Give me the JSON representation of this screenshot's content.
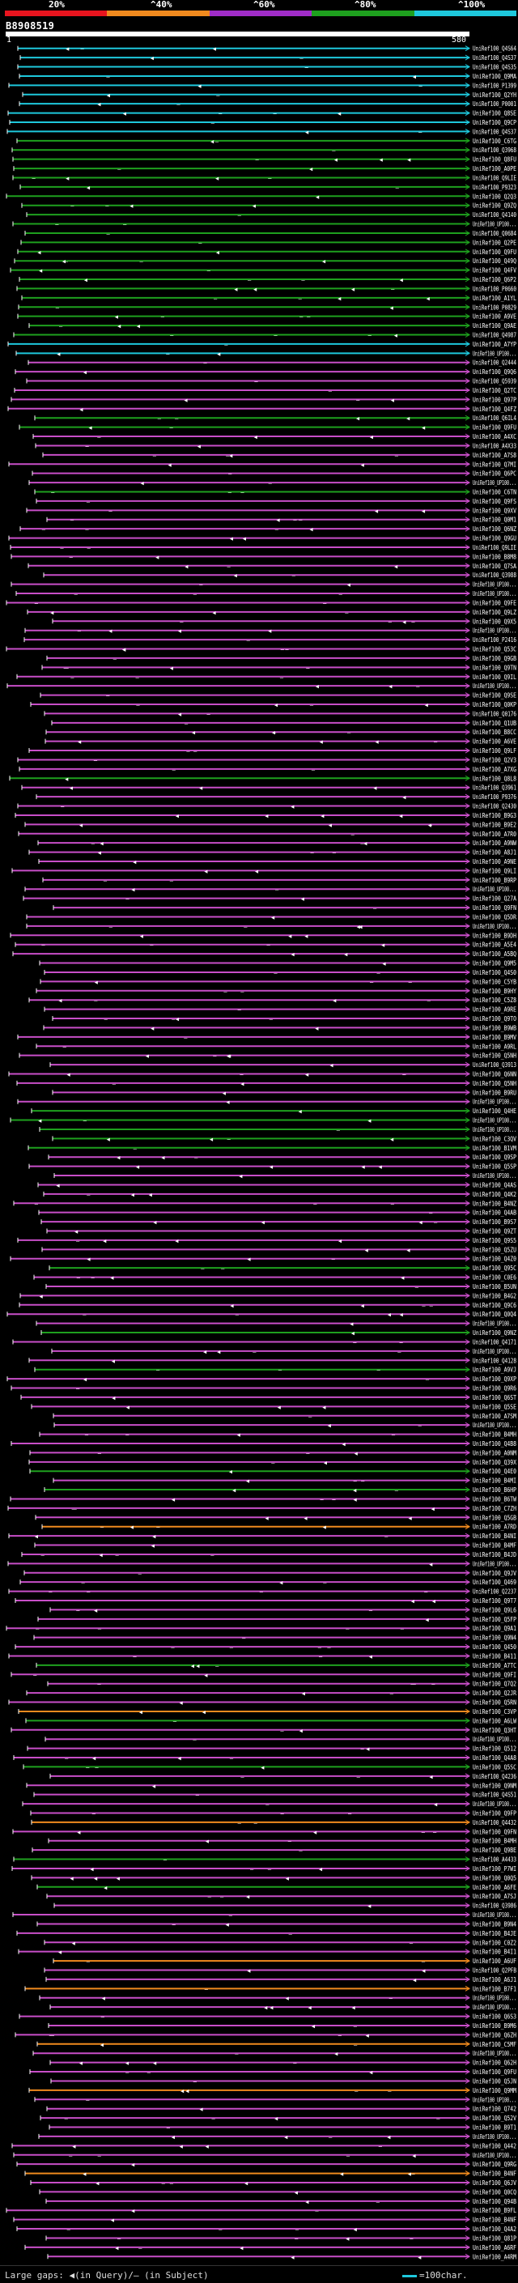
{
  "scale": {
    "labels": [
      "20%",
      "^40%",
      "^60%",
      "^80%",
      "^100%"
    ],
    "colors": [
      "#e8141e",
      "#f08a1e",
      "#a02cc8",
      "#1ea01e",
      "#1ec8dc"
    ]
  },
  "query": {
    "id": "B8908519",
    "start": "1",
    "end": "580"
  },
  "colors": {
    "cyan": "#1ec8dc",
    "green": "#1ea01e",
    "magenta": "#c84ec8",
    "orange": "#f08a1e",
    "label": "#ffffff",
    "marker": "#ffffff"
  },
  "hits": [
    {
      "label": "UniRef100_Q4S64",
      "color": "cyan"
    },
    {
      "label": "UniRef100_Q4S37",
      "color": "cyan"
    },
    {
      "label": "UniRef100_Q4S35",
      "color": "cyan"
    },
    {
      "label": "UniRef100_Q9MA",
      "color": "cyan"
    },
    {
      "label": "UniRef100_P1399",
      "color": "cyan"
    },
    {
      "label": "UniRef100_Q2YH",
      "color": "cyan"
    },
    {
      "label": "UniRef100_P0001",
      "color": "cyan"
    },
    {
      "label": "UniRef100_Q8SE",
      "color": "cyan"
    },
    {
      "label": "UniRef100_Q9CP",
      "color": "cyan"
    },
    {
      "label": "UniRef100_Q4S37",
      "color": "cyan"
    },
    {
      "label": "UniRef100_C6TG",
      "color": "green"
    },
    {
      "label": "UniRef100_Q3968",
      "color": "green"
    },
    {
      "label": "UniRef100_Q8FU",
      "color": "green"
    },
    {
      "label": "UniRef100_A0PE",
      "color": "green"
    },
    {
      "label": "UniRef100_Q9LIE",
      "color": "green"
    },
    {
      "label": "UniRef100_P9323",
      "color": "green"
    },
    {
      "label": "UniRef100_Q2Q3",
      "color": "green"
    },
    {
      "label": "UniRef100_Q9ZQ",
      "color": "green"
    },
    {
      "label": "UniRef100_Q4140",
      "color": "green"
    },
    {
      "label": "UniRef100_UP100...",
      "color": "green"
    },
    {
      "label": "UniRef100_Q0684",
      "color": "green"
    },
    {
      "label": "UniRef100_Q2PE",
      "color": "green"
    },
    {
      "label": "UniRef100_Q9FU",
      "color": "green"
    },
    {
      "label": "UniRef100_Q49Q",
      "color": "green"
    },
    {
      "label": "UniRef100_Q4FV",
      "color": "green"
    },
    {
      "label": "UniRef100_Q6P2",
      "color": "green"
    },
    {
      "label": "UniRef100_P0660",
      "color": "green"
    },
    {
      "label": "UniRef100_A1YL",
      "color": "green"
    },
    {
      "label": "UniRef100_P0829",
      "color": "green"
    },
    {
      "label": "UniRef100_A9VE",
      "color": "green"
    },
    {
      "label": "UniRef100_Q9AE",
      "color": "green"
    },
    {
      "label": "UniRef100_Q4987",
      "color": "green"
    },
    {
      "label": "UniRef100_A7YP",
      "color": "cyan"
    },
    {
      "label": "UniRef100_UP100...",
      "color": "cyan"
    },
    {
      "label": "UniRef100_Q2444",
      "color": "magenta"
    },
    {
      "label": "UniRef100_Q9Q6",
      "color": "magenta"
    },
    {
      "label": "UniRef100_Q5939",
      "color": "magenta"
    },
    {
      "label": "UniRef100_Q2TC",
      "color": "magenta"
    },
    {
      "label": "UniRef100_Q97P",
      "color": "magenta"
    },
    {
      "label": "UniRef100_Q4FZ",
      "color": "magenta"
    },
    {
      "label": "UniRef100_Q6IL4",
      "color": "green"
    },
    {
      "label": "UniRef100_Q9FU",
      "color": "green"
    },
    {
      "label": "UniRef100_A4XC",
      "color": "magenta"
    },
    {
      "label": "UniRef100_A4X33",
      "color": "magenta"
    },
    {
      "label": "UniRef100_A7S8",
      "color": "magenta"
    },
    {
      "label": "UniRef100_Q7MI",
      "color": "magenta"
    },
    {
      "label": "UniRef100_Q6PC",
      "color": "magenta"
    },
    {
      "label": "UniRef100_UP100...",
      "color": "magenta"
    },
    {
      "label": "UniRef100_C6TN",
      "color": "green"
    },
    {
      "label": "UniRef100_Q9FS",
      "color": "magenta"
    },
    {
      "label": "UniRef100_Q9XV",
      "color": "magenta"
    },
    {
      "label": "UniRef100_Q0M1",
      "color": "magenta"
    },
    {
      "label": "UniRef100_Q6NZ",
      "color": "magenta"
    },
    {
      "label": "UniRef100_Q9GU",
      "color": "magenta"
    },
    {
      "label": "UniRef100_Q9LIE",
      "color": "magenta"
    },
    {
      "label": "UniRef100_B8M8",
      "color": "magenta"
    },
    {
      "label": "UniRef100_Q7SA",
      "color": "magenta"
    },
    {
      "label": "UniRef100_Q3988",
      "color": "magenta"
    },
    {
      "label": "UniRef100_UP100...",
      "color": "magenta"
    },
    {
      "label": "UniRef100_UP100...",
      "color": "magenta"
    },
    {
      "label": "UniRef100_Q9FE",
      "color": "magenta"
    },
    {
      "label": "UniRef100_Q9LZ",
      "color": "magenta"
    },
    {
      "label": "UniRef100_Q9X5",
      "color": "magenta"
    },
    {
      "label": "UniRef100_UP100...",
      "color": "magenta"
    },
    {
      "label": "UniRef100_P2416",
      "color": "magenta"
    },
    {
      "label": "UniRef100_Q53C",
      "color": "magenta"
    },
    {
      "label": "UniRef100_Q9GB",
      "color": "magenta"
    },
    {
      "label": "UniRef100_Q9TN",
      "color": "magenta"
    },
    {
      "label": "UniRef100_Q9IL",
      "color": "magenta"
    },
    {
      "label": "UniRef100_UP100...",
      "color": "magenta"
    },
    {
      "label": "UniRef100_Q9SE",
      "color": "magenta"
    },
    {
      "label": "UniRef100_Q0KP",
      "color": "magenta"
    },
    {
      "label": "UniRef100_Q0176",
      "color": "magenta"
    },
    {
      "label": "UniRef100_Q1UB",
      "color": "magenta"
    },
    {
      "label": "UniRef100_B8CC",
      "color": "magenta"
    },
    {
      "label": "UniRef100_A6VE",
      "color": "magenta"
    },
    {
      "label": "UniRef100_Q9LF",
      "color": "magenta"
    },
    {
      "label": "UniRef100_Q2V3",
      "color": "magenta"
    },
    {
      "label": "UniRef100_A7XG",
      "color": "magenta"
    },
    {
      "label": "UniRef100_Q8L8",
      "color": "green"
    },
    {
      "label": "UniRef100_Q3961",
      "color": "magenta"
    },
    {
      "label": "UniRef100_P9376",
      "color": "magenta"
    },
    {
      "label": "UniRef100_Q2430",
      "color": "magenta"
    },
    {
      "label": "UniRef100_B9G3",
      "color": "magenta"
    },
    {
      "label": "UniRef100_B9E2",
      "color": "magenta"
    },
    {
      "label": "UniRef100_A7R0",
      "color": "magenta"
    },
    {
      "label": "UniRef100_A9NW",
      "color": "magenta"
    },
    {
      "label": "UniRef100_A8J1",
      "color": "magenta"
    },
    {
      "label": "UniRef100_A9NE",
      "color": "magenta"
    },
    {
      "label": "UniRef100_Q9LI",
      "color": "magenta"
    },
    {
      "label": "UniRef100_B9RP",
      "color": "magenta"
    },
    {
      "label": "UniRef100_UP100...",
      "color": "magenta"
    },
    {
      "label": "UniRef100_Q27A",
      "color": "magenta"
    },
    {
      "label": "UniRef100_Q9FN",
      "color": "magenta"
    },
    {
      "label": "UniRef100_Q5DR",
      "color": "magenta"
    },
    {
      "label": "UniRef100_UP100...",
      "color": "magenta"
    },
    {
      "label": "UniRef100_B9DH",
      "color": "magenta"
    },
    {
      "label": "UniRef100_A5E4",
      "color": "magenta"
    },
    {
      "label": "UniRef100_A5BQ",
      "color": "magenta"
    },
    {
      "label": "UniRef100_Q9M5",
      "color": "magenta"
    },
    {
      "label": "UniRef100_Q4S0",
      "color": "magenta"
    },
    {
      "label": "UniRef100_C5YB",
      "color": "magenta"
    },
    {
      "label": "UniRef100_B9HY",
      "color": "magenta"
    },
    {
      "label": "UniRef100_C5Z8",
      "color": "magenta"
    },
    {
      "label": "UniRef100_A9RE",
      "color": "magenta"
    },
    {
      "label": "UniRef100_Q9TO",
      "color": "magenta"
    },
    {
      "label": "UniRef100_B9WB",
      "color": "magenta"
    },
    {
      "label": "UniRef100_B9MV",
      "color": "magenta"
    },
    {
      "label": "UniRef100_A9RL",
      "color": "magenta"
    },
    {
      "label": "UniRef100_Q5NH",
      "color": "magenta"
    },
    {
      "label": "UniRef100_Q3913",
      "color": "magenta"
    },
    {
      "label": "UniRef100_Q6NN",
      "color": "magenta"
    },
    {
      "label": "UniRef100_Q5NH",
      "color": "magenta"
    },
    {
      "label": "UniRef100_B9RU",
      "color": "magenta"
    },
    {
      "label": "UniRef100_UP100...",
      "color": "magenta"
    },
    {
      "label": "UniRef100_Q4HE",
      "color": "green"
    },
    {
      "label": "UniRef100_UP100...",
      "color": "green"
    },
    {
      "label": "UniRef100_UP100...",
      "color": "green"
    },
    {
      "label": "UniRef100_C3QV",
      "color": "green"
    },
    {
      "label": "UniRef100_B1VM",
      "color": "green"
    },
    {
      "label": "UniRef100_Q9SP",
      "color": "magenta"
    },
    {
      "label": "UniRef100_Q5SP",
      "color": "magenta"
    },
    {
      "label": "UniRef100_UP100...",
      "color": "magenta"
    },
    {
      "label": "UniRef100_Q4AS",
      "color": "magenta"
    },
    {
      "label": "UniRef100_Q4K2",
      "color": "magenta"
    },
    {
      "label": "UniRef100_B4NZ",
      "color": "magenta"
    },
    {
      "label": "UniRef100_Q4AB",
      "color": "magenta"
    },
    {
      "label": "UniRef100_B9S7",
      "color": "magenta"
    },
    {
      "label": "UniRef100_Q9ZT",
      "color": "magenta"
    },
    {
      "label": "UniRef100_Q9S5",
      "color": "magenta"
    },
    {
      "label": "UniRef100_Q5ZU",
      "color": "magenta"
    },
    {
      "label": "UniRef100_Q4Z0",
      "color": "magenta"
    },
    {
      "label": "UniRef100_Q95C",
      "color": "green"
    },
    {
      "label": "UniRef100_C0E6",
      "color": "magenta"
    },
    {
      "label": "UniRef100_B5UN",
      "color": "magenta"
    },
    {
      "label": "UniRef100_B4G2",
      "color": "magenta"
    },
    {
      "label": "UniRef100_Q9C6",
      "color": "magenta"
    },
    {
      "label": "UniRef100_Q0Q4",
      "color": "magenta"
    },
    {
      "label": "UniRef100_UP100...",
      "color": "magenta"
    },
    {
      "label": "UniRef100_Q9NZ",
      "color": "green"
    },
    {
      "label": "UniRef100_Q4171",
      "color": "magenta"
    },
    {
      "label": "UniRef100_UP100...",
      "color": "magenta"
    },
    {
      "label": "UniRef100_Q4128",
      "color": "magenta"
    },
    {
      "label": "UniRef100_A9VJ",
      "color": "green"
    },
    {
      "label": "UniRef100_Q9XP",
      "color": "magenta"
    },
    {
      "label": "UniRef100_Q9R6",
      "color": "magenta"
    },
    {
      "label": "UniRef100_Q6ST",
      "color": "magenta"
    },
    {
      "label": "UniRef100_Q5SE",
      "color": "magenta"
    },
    {
      "label": "UniRef100_A7SM",
      "color": "magenta"
    },
    {
      "label": "UniRef100_UP100...",
      "color": "magenta"
    },
    {
      "label": "UniRef100_B4MH",
      "color": "magenta"
    },
    {
      "label": "UniRef100_Q4B8",
      "color": "magenta"
    },
    {
      "label": "UniRef100_A0NM",
      "color": "magenta"
    },
    {
      "label": "UniRef100_Q39X",
      "color": "magenta"
    },
    {
      "label": "UniRef100_Q4E0",
      "color": "green"
    },
    {
      "label": "UniRef100_B4MI",
      "color": "magenta"
    },
    {
      "label": "UniRef100_B6HP",
      "color": "green"
    },
    {
      "label": "UniRef100_B6TW",
      "color": "magenta"
    },
    {
      "label": "UniRef100_C7ZH",
      "color": "magenta"
    },
    {
      "label": "UniRef100_Q5GB",
      "color": "magenta"
    },
    {
      "label": "UniRef100_A7RD",
      "color": "orange"
    },
    {
      "label": "UniRef100_B4NI",
      "color": "magenta"
    },
    {
      "label": "UniRef100_B4MF",
      "color": "magenta"
    },
    {
      "label": "UniRef100_B4JD",
      "color": "magenta"
    },
    {
      "label": "UniRef100_UP100...",
      "color": "magenta"
    },
    {
      "label": "UniRef100_Q9JV",
      "color": "magenta"
    },
    {
      "label": "UniRef100_Q469",
      "color": "magenta"
    },
    {
      "label": "UniRef100_Q2237",
      "color": "magenta"
    },
    {
      "label": "UniRef100_Q9T7",
      "color": "magenta"
    },
    {
      "label": "UniRef100_Q9L6",
      "color": "magenta"
    },
    {
      "label": "UniRef100_Q5FP",
      "color": "magenta"
    },
    {
      "label": "UniRef100_Q9A1",
      "color": "magenta"
    },
    {
      "label": "UniRef100_Q9N4",
      "color": "magenta"
    },
    {
      "label": "UniRef100_Q450",
      "color": "magenta"
    },
    {
      "label": "UniRef100_B411",
      "color": "magenta"
    },
    {
      "label": "UniRef100_A7TC",
      "color": "green"
    },
    {
      "label": "UniRef100_Q9FI",
      "color": "magenta"
    },
    {
      "label": "UniRef100_Q7Q2",
      "color": "magenta"
    },
    {
      "label": "UniRef100_Q2JR",
      "color": "magenta"
    },
    {
      "label": "UniRef100_Q5RN",
      "color": "magenta"
    },
    {
      "label": "UniRef100_C3VP",
      "color": "orange"
    },
    {
      "label": "UniRef100_A6LW",
      "color": "green"
    },
    {
      "label": "UniRef100_Q3HT",
      "color": "magenta"
    },
    {
      "label": "UniRef100_UP100...",
      "color": "magenta"
    },
    {
      "label": "UniRef100_Q512",
      "color": "magenta"
    },
    {
      "label": "UniRef100_Q4A8",
      "color": "magenta"
    },
    {
      "label": "UniRef100_Q5SC",
      "color": "green"
    },
    {
      "label": "UniRef100_Q4236",
      "color": "magenta"
    },
    {
      "label": "UniRef100_Q9NM",
      "color": "magenta"
    },
    {
      "label": "UniRef100_Q4S51",
      "color": "magenta"
    },
    {
      "label": "UniRef100_UP100...",
      "color": "magenta"
    },
    {
      "label": "UniRef100_Q9FP",
      "color": "magenta"
    },
    {
      "label": "UniRef100_Q4432",
      "color": "orange"
    },
    {
      "label": "UniRef100_Q9FN",
      "color": "magenta"
    },
    {
      "label": "UniRef100_B4MH",
      "color": "magenta"
    },
    {
      "label": "UniRef100_Q9BE",
      "color": "magenta"
    },
    {
      "label": "UniRef100_A4433",
      "color": "green"
    },
    {
      "label": "UniRef100_P7WI",
      "color": "magenta"
    },
    {
      "label": "UniRef100_Q0Q5",
      "color": "magenta"
    },
    {
      "label": "UniRef100_A6FE",
      "color": "green"
    },
    {
      "label": "UniRef100_A7SJ",
      "color": "magenta"
    },
    {
      "label": "UniRef100_Q3986",
      "color": "magenta"
    },
    {
      "label": "UniRef100_UP100...",
      "color": "magenta"
    },
    {
      "label": "UniRef100_B9N4",
      "color": "magenta"
    },
    {
      "label": "UniRef100_B4JE",
      "color": "magenta"
    },
    {
      "label": "UniRef100_C0Z2",
      "color": "magenta"
    },
    {
      "label": "UniRef100_B4I1",
      "color": "magenta"
    },
    {
      "label": "UniRef100_A6UF",
      "color": "orange"
    },
    {
      "label": "UniRef100_Q2PFB",
      "color": "magenta"
    },
    {
      "label": "UniRef100_A6J1",
      "color": "magenta"
    },
    {
      "label": "UniRef100_B7F1",
      "color": "orange"
    },
    {
      "label": "UniRef100_UP100...",
      "color": "magenta"
    },
    {
      "label": "UniRef100_UP100...",
      "color": "magenta"
    },
    {
      "label": "UniRef100_Q6S3",
      "color": "magenta"
    },
    {
      "label": "UniRef100_B9M6",
      "color": "magenta"
    },
    {
      "label": "UniRef100_Q6ZH",
      "color": "magenta"
    },
    {
      "label": "UniRef100_C5MF",
      "color": "orange"
    },
    {
      "label": "UniRef100_UP100...",
      "color": "magenta"
    },
    {
      "label": "UniRef100_Q62H",
      "color": "magenta"
    },
    {
      "label": "UniRef100_Q9FU",
      "color": "magenta"
    },
    {
      "label": "UniRef100_Q5JN",
      "color": "magenta"
    },
    {
      "label": "UniRef100_Q9MM",
      "color": "orange"
    },
    {
      "label": "UniRef100_UP100...",
      "color": "magenta"
    },
    {
      "label": "UniRef100_Q742",
      "color": "magenta"
    },
    {
      "label": "UniRef100_Q52V",
      "color": "magenta"
    },
    {
      "label": "UniRef100_B9T1",
      "color": "magenta"
    },
    {
      "label": "UniRef100_UP100...",
      "color": "magenta"
    },
    {
      "label": "UniRef100_Q442",
      "color": "magenta"
    },
    {
      "label": "UniRef100_UP100...",
      "color": "magenta"
    },
    {
      "label": "UniRef100_Q9RG",
      "color": "magenta"
    },
    {
      "label": "UniRef100_B4NF",
      "color": "orange"
    },
    {
      "label": "UniRef100_Q6JV",
      "color": "magenta"
    },
    {
      "label": "UniRef100_Q0CQ",
      "color": "magenta"
    },
    {
      "label": "UniRef100_Q94B",
      "color": "magenta"
    },
    {
      "label": "UniRef100_B9FL",
      "color": "magenta"
    },
    {
      "label": "UniRef100_B4NF",
      "color": "magenta"
    },
    {
      "label": "UniRef100_Q4A2",
      "color": "magenta"
    },
    {
      "label": "UniRef100_Q81P",
      "color": "magenta"
    },
    {
      "label": "UniRef100_A6RF",
      "color": "magenta"
    },
    {
      "label": "UniRef100_A4RM",
      "color": "magenta"
    }
  ],
  "footer": {
    "legend": "Large gaps: ◀(in Query)/– (in Subject)",
    "scale_note": "=100char."
  }
}
